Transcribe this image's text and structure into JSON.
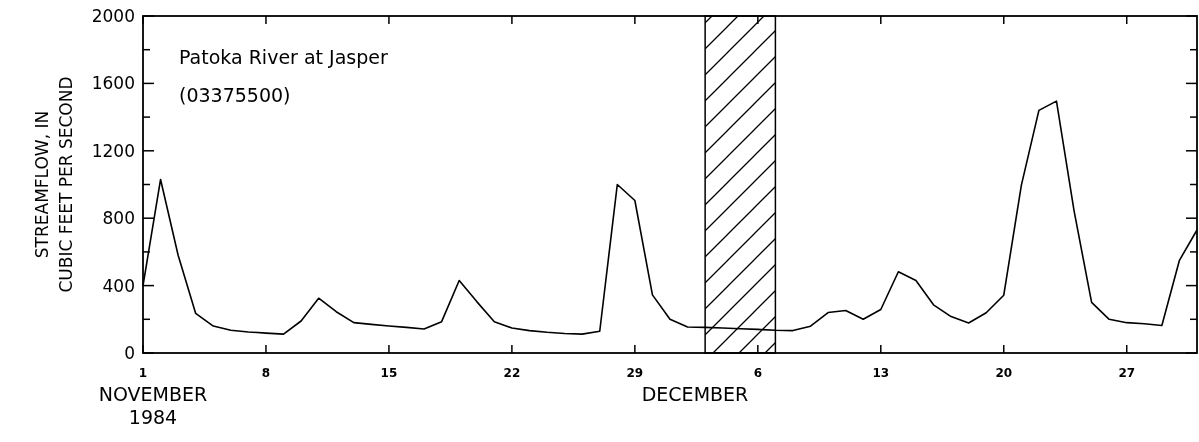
{
  "chart_data": {
    "type": "line",
    "title": "Patoka River at Jasper",
    "subtitle": "(03375500)",
    "ylabel": "STREAMFLOW, IN\nCUBIC FEET PER SECOND",
    "annotations": [
      "NOVEMBER\n1984",
      "DECEMBER"
    ],
    "x": [
      "1984-11-01",
      "1984-11-02",
      "1984-11-03",
      "1984-11-04",
      "1984-11-05",
      "1984-11-06",
      "1984-11-07",
      "1984-11-08",
      "1984-11-09",
      "1984-11-10",
      "1984-11-11",
      "1984-11-12",
      "1984-11-13",
      "1984-11-14",
      "1984-11-15",
      "1984-11-16",
      "1984-11-17",
      "1984-11-18",
      "1984-11-19",
      "1984-11-20",
      "1984-11-21",
      "1984-11-22",
      "1984-11-23",
      "1984-11-24",
      "1984-11-25",
      "1984-11-26",
      "1984-11-27",
      "1984-11-28",
      "1984-11-29",
      "1984-11-30",
      "1984-12-01",
      "1984-12-02",
      "1984-12-03",
      "1984-12-04",
      "1984-12-05",
      "1984-12-06",
      "1984-12-07",
      "1984-12-08",
      "1984-12-09",
      "1984-12-10",
      "1984-12-11",
      "1984-12-12",
      "1984-12-13",
      "1984-12-14",
      "1984-12-15",
      "1984-12-16",
      "1984-12-17",
      "1984-12-18",
      "1984-12-19",
      "1984-12-20",
      "1984-12-21",
      "1984-12-22",
      "1984-12-23",
      "1984-12-24",
      "1984-12-25",
      "1984-12-26",
      "1984-12-27",
      "1984-12-28",
      "1984-12-29",
      "1984-12-30",
      "1984-12-31"
    ],
    "series": [
      {
        "color": "#000000",
        "values": [
          400,
          1030,
          580,
          235,
          160,
          135,
          125,
          118,
          112,
          190,
          325,
          245,
          180,
          170,
          160,
          152,
          142,
          186,
          430,
          305,
          186,
          148,
          133,
          123,
          116,
          112,
          129,
          1000,
          905,
          345,
          200,
          154,
          152,
          148,
          144,
          140,
          135,
          133,
          159,
          240,
          252,
          200,
          258,
          482,
          430,
          286,
          216,
          178,
          239,
          343,
          995,
          1440,
          1495,
          845,
          300,
          200,
          180,
          174,
          163,
          550,
          730
        ]
      }
    ],
    "xlim": [
      "1984-11-01",
      "1984-12-31"
    ],
    "xticks": [
      {
        "value": "1984-11-01",
        "label": "1"
      },
      {
        "value": "1984-11-08",
        "label": "8"
      },
      {
        "value": "1984-11-15",
        "label": "15"
      },
      {
        "value": "1984-11-22",
        "label": "22"
      },
      {
        "value": "1984-11-29",
        "label": "29"
      },
      {
        "value": "1984-12-06",
        "label": "6"
      },
      {
        "value": "1984-12-13",
        "label": "13"
      },
      {
        "value": "1984-12-20",
        "label": "20"
      },
      {
        "value": "1984-12-27",
        "label": "27"
      }
    ],
    "ylim": [
      0,
      2000
    ],
    "yticks": [
      0,
      {
        "value": 200,
        "label": null
      },
      400,
      {
        "value": 600,
        "label": null
      },
      800,
      {
        "value": 1000,
        "label": null
      },
      1200,
      {
        "value": 1400,
        "label": null
      },
      1600,
      {
        "value": 1800,
        "label": null
      },
      2000
    ],
    "bands": [
      {
        "axis": "x",
        "from": "1984-12-03",
        "to": "1984-12-07",
        "color": "#000000"
      }
    ],
    "marker": "none",
    "line_style": "solid"
  }
}
